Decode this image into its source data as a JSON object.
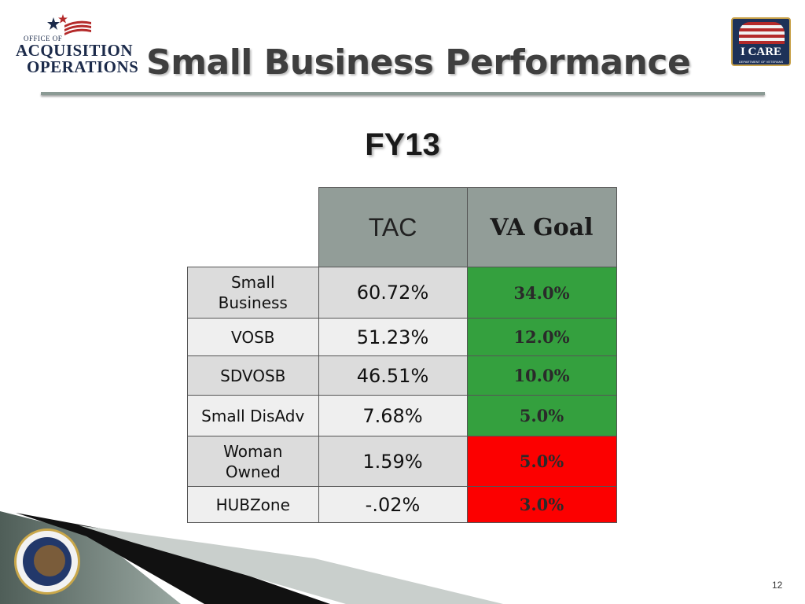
{
  "header": {
    "logo_left": {
      "line1": "OFFICE OF",
      "line2": "ACQUISITION",
      "line3": "OPERATIONS"
    },
    "logo_right": {
      "text": "I CARE",
      "subtext": "DEPARTMENT OF VETERANS AFFAIRS"
    },
    "title": "Small Business Performance"
  },
  "subtitle": "FY13",
  "table": {
    "columns": [
      "TAC",
      "VA Goal"
    ],
    "rows": [
      {
        "label": "Small Business",
        "tac": "60.72%",
        "goal": "34.0%",
        "status": "green"
      },
      {
        "label": "VOSB",
        "tac": "51.23%",
        "goal": "12.0%",
        "status": "green"
      },
      {
        "label": "SDVOSB",
        "tac": "46.51%",
        "goal": "10.0%",
        "status": "green"
      },
      {
        "label": "Small DisAdv",
        "tac": "7.68%",
        "goal": "5.0%",
        "status": "green"
      },
      {
        "label": "Woman Owned",
        "tac": "1.59%",
        "goal": "5.0%",
        "status": "red"
      },
      {
        "label": "HUBZone",
        "tac": "-.02%",
        "goal": "3.0%",
        "status": "red"
      }
    ],
    "colors": {
      "header": "#929d98",
      "green": "#34a03e",
      "red": "#fc0000"
    }
  },
  "footer": {
    "seal_text": "DEPARTMENT OF",
    "page_number": "12"
  }
}
